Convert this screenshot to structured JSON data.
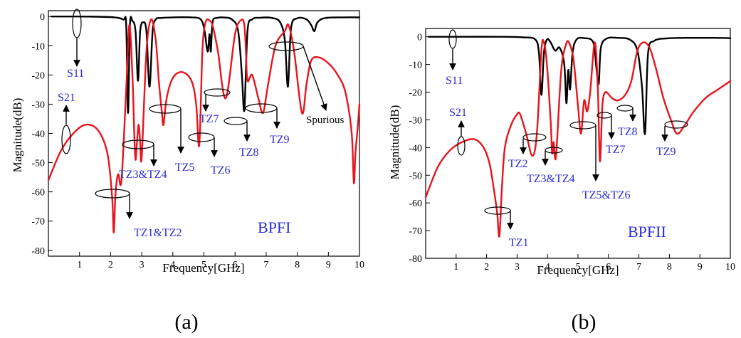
{
  "colors": {
    "s11": "#000000",
    "s21": "#e8141e",
    "annotation": "#2b2bd6",
    "arrow": "#000000"
  },
  "chart_data": [
    {
      "type": "line",
      "panel_label": "(a)",
      "filter_name": "BPFI",
      "xlabel": "Frequency[GHz]",
      "ylabel": "Magnitude(dB)",
      "xlim": [
        0,
        10
      ],
      "ylim": [
        -82,
        2
      ],
      "x_ticks": [
        1,
        2,
        3,
        4,
        5,
        6,
        7,
        8,
        9,
        10
      ],
      "y_ticks": [
        0,
        -10,
        -20,
        -30,
        -40,
        -50,
        -60,
        -70,
        -80
      ],
      "grid": false,
      "legend": "none",
      "series": [
        {
          "name": "S11",
          "color": "#000000",
          "x": [
            0.1,
            1.0,
            2.0,
            2.4,
            2.5,
            2.56,
            2.62,
            2.7,
            2.8,
            2.88,
            2.95,
            3.05,
            3.15,
            3.25,
            3.35,
            3.45,
            3.6,
            4.0,
            4.6,
            4.9,
            5.02,
            5.12,
            5.18,
            5.22,
            5.26,
            5.3,
            5.4,
            5.6,
            5.9,
            6.1,
            6.22,
            6.3,
            6.4,
            6.55,
            6.8,
            7.2,
            7.45,
            7.6,
            7.7,
            7.8,
            8.0,
            8.3,
            8.45,
            8.55,
            8.65,
            8.9,
            9.5,
            10.0
          ],
          "values": [
            0,
            0,
            -0.2,
            -1,
            -3,
            -33,
            -3,
            -1.5,
            -5,
            -22,
            -5,
            -2,
            -5,
            -24,
            -5,
            -1,
            -0.5,
            -0.3,
            -0.3,
            -1,
            -5,
            -12,
            -6,
            -12,
            -4,
            -1,
            -0.5,
            -0.3,
            -1,
            -5,
            -20,
            -32,
            -5,
            -1,
            -0.4,
            -0.5,
            -2,
            -8,
            -24,
            -4,
            -0.6,
            -1,
            -3,
            -5,
            -2,
            -0.5,
            -0.3,
            -0.3
          ]
        },
        {
          "name": "S21",
          "color": "#e8141e",
          "x": [
            0.0,
            0.4,
            0.8,
            1.2,
            1.6,
            1.9,
            2.05,
            2.1,
            2.15,
            2.2,
            2.25,
            2.35,
            2.5,
            2.6,
            2.7,
            2.76,
            2.8,
            2.85,
            2.9,
            2.95,
            3.0,
            3.15,
            3.3,
            3.45,
            3.55,
            3.65,
            3.7,
            3.8,
            4.0,
            4.3,
            4.6,
            4.75,
            4.85,
            4.95,
            5.05,
            5.2,
            5.3,
            5.45,
            5.7,
            6.0,
            6.2,
            6.3,
            6.35,
            6.4,
            6.55,
            6.75,
            6.9,
            7.05,
            7.3,
            7.6,
            7.72,
            7.9,
            8.15,
            8.3,
            8.45,
            8.7,
            9.0,
            9.3,
            9.55,
            9.75,
            9.82,
            9.87,
            9.95,
            10.0
          ],
          "values": [
            -56,
            -46,
            -40,
            -37,
            -39,
            -47,
            -62,
            -74,
            -62,
            -56,
            -54,
            -56,
            -25,
            -3,
            -20,
            -40,
            -49,
            -43,
            -37,
            -43,
            -48,
            -12,
            -1,
            -8,
            -22,
            -33,
            -37,
            -28,
            -21,
            -19,
            -22,
            -30,
            -44,
            -12,
            -2,
            -1.5,
            -4,
            -12,
            -28,
            -6,
            -1.2,
            -3,
            -12,
            -22,
            -20,
            -28,
            -33,
            -24,
            -10,
            -5,
            -3,
            -12,
            -33,
            -23,
            -15,
            -14,
            -16,
            -20,
            -26,
            -40,
            -57,
            -47,
            -37,
            -30
          ]
        }
      ],
      "annotations": [
        {
          "label": "S11"
        },
        {
          "label": "S21"
        },
        {
          "label": "TZ1&TZ2"
        },
        {
          "label": "TZ3&TZ4"
        },
        {
          "label": "TZ5"
        },
        {
          "label": "TZ6"
        },
        {
          "label": "TZ7"
        },
        {
          "label": "TZ8"
        },
        {
          "label": "TZ9"
        },
        {
          "label": "Spurious"
        }
      ]
    },
    {
      "type": "line",
      "panel_label": "(b)",
      "filter_name": "BPFII",
      "xlabel": "Frequency[GHz]",
      "ylabel": "Magnitude(dB)",
      "xlim": [
        0,
        10
      ],
      "ylim": [
        -80,
        3
      ],
      "x_ticks": [
        1,
        2,
        3,
        4,
        5,
        6,
        7,
        8,
        9,
        10
      ],
      "y_ticks": [
        0,
        -10,
        -20,
        -30,
        -40,
        -50,
        -60,
        -70,
        -80
      ],
      "grid": false,
      "legend": "none",
      "series": [
        {
          "name": "S11",
          "color": "#000000",
          "x": [
            0.1,
            1.0,
            2.5,
            3.2,
            3.6,
            3.72,
            3.8,
            3.88,
            3.98,
            4.1,
            4.25,
            4.4,
            4.55,
            4.62,
            4.68,
            4.74,
            4.82,
            4.95,
            5.2,
            5.5,
            5.6,
            5.68,
            5.75,
            5.95,
            6.3,
            6.7,
            6.95,
            7.1,
            7.2,
            7.3,
            7.5,
            7.9,
            8.5,
            9.5,
            10.0
          ],
          "values": [
            0,
            0,
            0,
            -0.2,
            -1,
            -6,
            -21,
            -6,
            -1,
            -2,
            -5,
            -4,
            -10,
            -24,
            -12,
            -19,
            -6,
            -1,
            -0.5,
            -2,
            -11,
            -17,
            -4,
            -0.6,
            -0.4,
            -1,
            -5,
            -18,
            -35,
            -6,
            -1.5,
            -0.6,
            -0.4,
            -0.4,
            -0.5
          ]
        },
        {
          "name": "S21",
          "color": "#e8141e",
          "x": [
            0.0,
            0.4,
            0.8,
            1.2,
            1.6,
            1.9,
            2.1,
            2.25,
            2.35,
            2.42,
            2.5,
            2.6,
            2.8,
            3.0,
            3.1,
            3.3,
            3.5,
            3.65,
            3.8,
            3.88,
            3.98,
            4.1,
            4.15,
            4.2,
            4.25,
            4.3,
            4.45,
            4.6,
            4.7,
            4.85,
            5.0,
            5.1,
            5.2,
            5.3,
            5.4,
            5.55,
            5.65,
            5.72,
            5.8,
            5.9,
            6.1,
            6.3,
            6.55,
            6.75,
            6.95,
            7.15,
            7.35,
            7.55,
            7.8,
            8.05,
            8.25,
            8.5,
            8.8,
            9.2,
            9.6,
            10.0
          ],
          "values": [
            -58,
            -47,
            -41,
            -38,
            -37,
            -40,
            -46,
            -56,
            -64,
            -72,
            -55,
            -40,
            -32,
            -28,
            -28,
            -35,
            -43,
            -35,
            -5,
            -2,
            -10,
            -30,
            -42,
            -38,
            -44,
            -40,
            -12,
            -3,
            -2,
            -8,
            -25,
            -35,
            -23,
            -27,
            -20,
            -2,
            -18,
            -45,
            -25,
            -20,
            -22,
            -23,
            -21,
            -16,
            -5,
            -2,
            -4,
            -11,
            -22,
            -30,
            -35,
            -32,
            -27,
            -22,
            -19,
            -16
          ]
        }
      ],
      "annotations": [
        {
          "label": "S11"
        },
        {
          "label": "S21"
        },
        {
          "label": "TZ1"
        },
        {
          "label": "TZ2"
        },
        {
          "label": "TZ3&TZ4"
        },
        {
          "label": "TZ5&TZ6"
        },
        {
          "label": "TZ7"
        },
        {
          "label": "TZ8"
        },
        {
          "label": "TZ9"
        }
      ]
    }
  ]
}
